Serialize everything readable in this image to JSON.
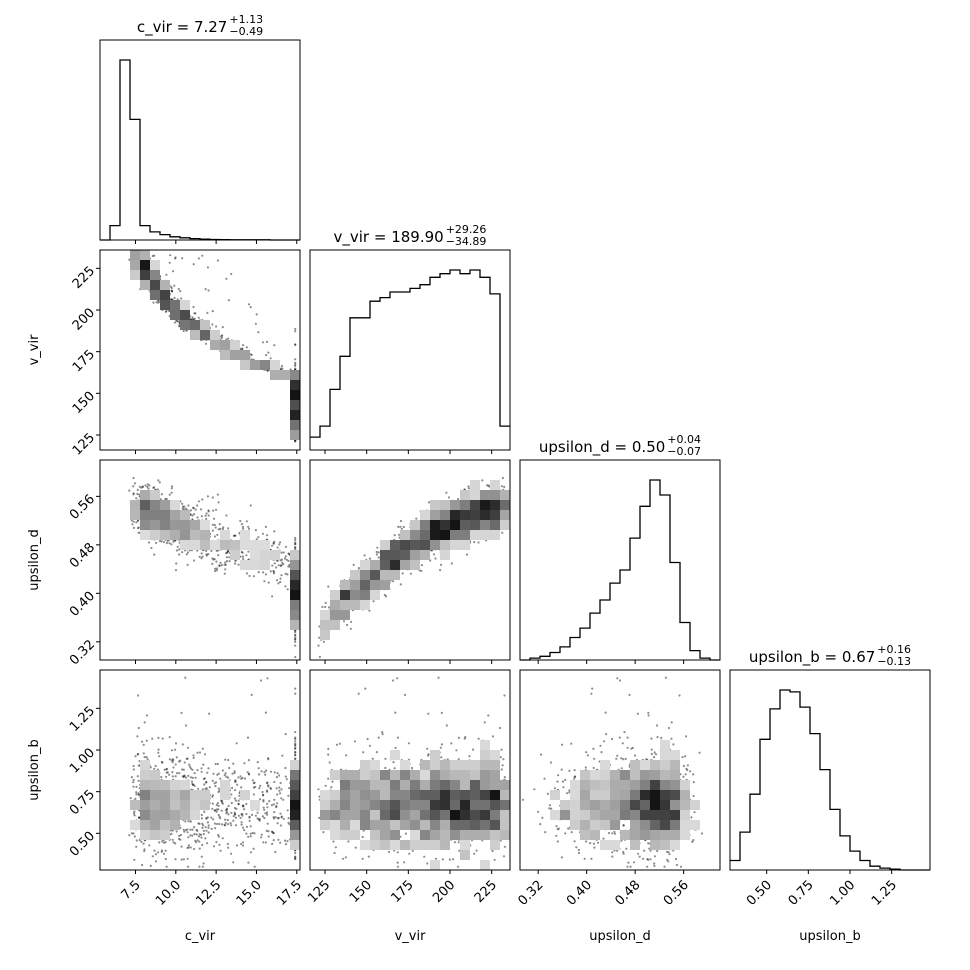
{
  "chart_data": {
    "type": "corner",
    "parameters": [
      "c_vir",
      "v_vir",
      "upsilon_d",
      "upsilon_b"
    ],
    "axis_labels": [
      "c_vir",
      "v_vir",
      "upsilon_d",
      "upsilon_b"
    ],
    "titles": [
      {
        "param": "c_vir",
        "text": "c_vir = 7.27",
        "sup": "+1.13",
        "sub": "−0.49"
      },
      {
        "param": "v_vir",
        "text": "v_vir = 189.90",
        "sup": "+29.26",
        "sub": "−34.89"
      },
      {
        "param": "upsilon_d",
        "text": "upsilon_d = 0.50",
        "sup": "+0.04",
        "sub": "−0.07"
      },
      {
        "param": "upsilon_b",
        "text": "upsilon_b = 0.67",
        "sup": "+0.16",
        "sub": "−0.13"
      }
    ],
    "ranges": [
      [
        5.3,
        17.7
      ],
      [
        116,
        236
      ],
      [
        0.29,
        0.62
      ],
      [
        0.28,
        1.48
      ]
    ],
    "ticks": [
      [
        "7.5",
        "10.0",
        "12.5",
        "15.0",
        "17.5"
      ],
      [
        "125",
        "150",
        "175",
        "200",
        "225"
      ],
      [
        "0.32",
        "0.40",
        "0.48",
        "0.56"
      ],
      [
        "0.50",
        "0.75",
        "1.00",
        "1.25"
      ]
    ],
    "tick_values": [
      [
        7.5,
        10.0,
        12.5,
        15.0,
        17.5
      ],
      [
        125,
        150,
        175,
        200,
        225
      ],
      [
        0.32,
        0.4,
        0.48,
        0.56
      ],
      [
        0.5,
        0.75,
        1.0,
        1.25
      ]
    ],
    "histograms": [
      {
        "param": "c_vir",
        "edges_range": [
          5.3,
          17.7
        ],
        "bins": 20,
        "counts": [
          0,
          0.08,
          1.0,
          0.67,
          0.08,
          0.045,
          0.03,
          0.018,
          0.012,
          0.008,
          0.005,
          0.003,
          0.002,
          0.001,
          0.001,
          0.001,
          0.001,
          0,
          0,
          0
        ]
      },
      {
        "param": "v_vir",
        "edges_range": [
          116,
          236
        ],
        "bins": 20,
        "counts": [
          0.07,
          0.13,
          0.33,
          0.51,
          0.72,
          0.72,
          0.81,
          0.83,
          0.86,
          0.86,
          0.88,
          0.9,
          0.94,
          0.96,
          0.98,
          0.96,
          0.98,
          0.94,
          0.85,
          0.13
        ]
      },
      {
        "param": "upsilon_d",
        "edges_range": [
          0.29,
          0.62
        ],
        "bins": 20,
        "counts": [
          0,
          0.01,
          0.02,
          0.04,
          0.07,
          0.12,
          0.17,
          0.25,
          0.32,
          0.41,
          0.48,
          0.65,
          0.82,
          0.96,
          0.88,
          0.52,
          0.2,
          0.05,
          0.01,
          0
        ]
      },
      {
        "param": "upsilon_b",
        "edges_range": [
          0.28,
          1.48
        ],
        "bins": 20,
        "counts": [
          0.05,
          0.2,
          0.4,
          0.69,
          0.85,
          0.95,
          0.94,
          0.86,
          0.72,
          0.53,
          0.32,
          0.18,
          0.1,
          0.05,
          0.02,
          0.01,
          0.005,
          0,
          0,
          0
        ]
      }
    ]
  }
}
